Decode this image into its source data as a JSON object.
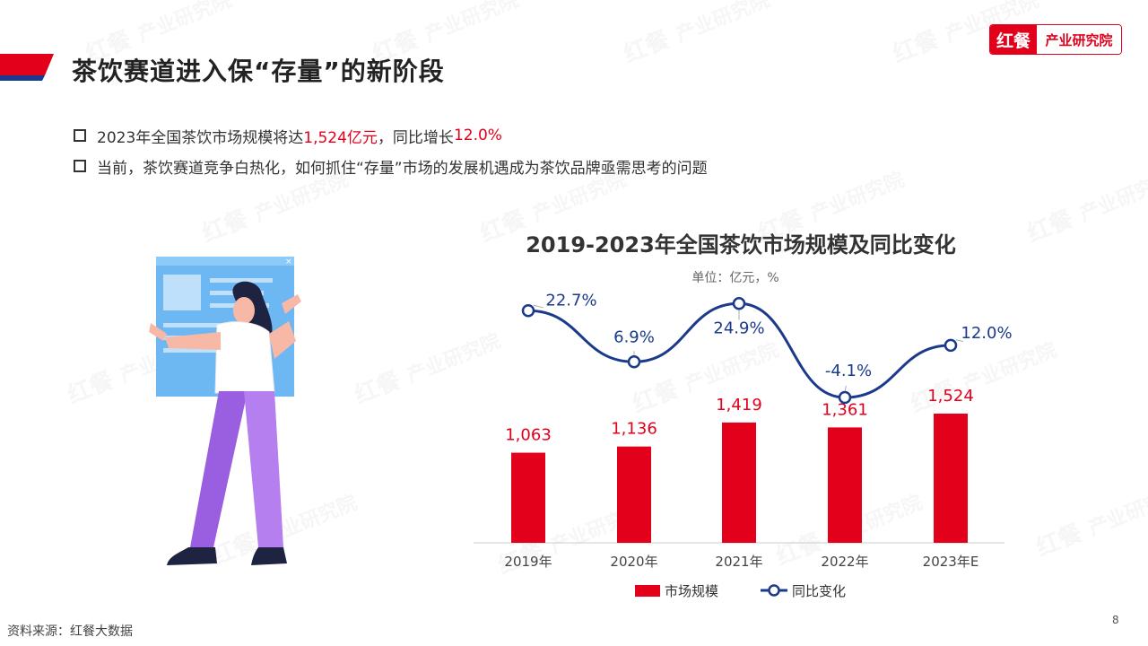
{
  "header": {
    "title": "茶饮赛道进入保“存量”的新阶段",
    "logo_left": "红餐",
    "logo_right": "产业研究院"
  },
  "bullets": [
    {
      "pre": "2023年全国茶饮市场规模将达",
      "hl1": "1,524亿元",
      "mid": "，同比增长",
      "hl2": "12.0%"
    },
    {
      "text": "当前，茶饮赛道竞争白热化，如何抓住“存量”市场的发展机遇成为茶饮品牌亟需思考的问题"
    }
  ],
  "footer": {
    "source": "资料来源：红餐大数据",
    "page": "8"
  },
  "watermark": {
    "logo": "红餐",
    "text": "产业研究院"
  },
  "colors": {
    "bar": "#e3001b",
    "line": "#1b3a8c",
    "accent_red": "#e3001b",
    "accent_blue": "#1b3a8c"
  },
  "chart_data": {
    "type": "bar",
    "title": "2019-2023年全国茶饮市场规模及同比变化",
    "subtitle": "单位：亿元，%",
    "categories": [
      "2019年",
      "2020年",
      "2021年",
      "2022年",
      "2023年E"
    ],
    "series": [
      {
        "name": "市场规模",
        "type": "bar",
        "values": [
          1063,
          1136,
          1419,
          1361,
          1524
        ],
        "labels": [
          "1,063",
          "1,136",
          "1,419",
          "1,361",
          "1,524"
        ]
      },
      {
        "name": "同比变化",
        "type": "line",
        "values": [
          22.7,
          6.9,
          24.9,
          -4.1,
          12.0
        ],
        "labels": [
          "22.7%",
          "6.9%",
          "24.9%",
          "-4.1%",
          "12.0%"
        ]
      }
    ],
    "legend": "bottom",
    "grid": false
  }
}
